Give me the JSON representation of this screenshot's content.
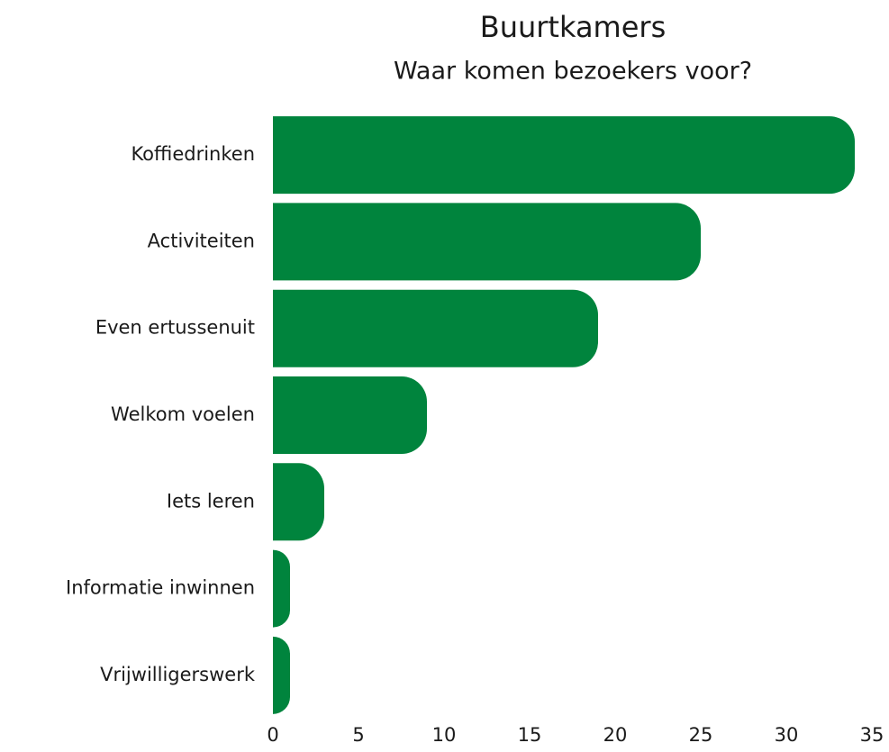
{
  "chart_data": {
    "type": "bar",
    "orientation": "horizontal",
    "title": "Buurtkamers",
    "subtitle": "Waar komen bezoekers voor?",
    "categories": [
      "Koffiedrinken",
      "Activiteiten",
      "Even ertussenuit",
      "Welkom voelen",
      "Iets leren",
      "Informatie inwinnen",
      "Vrijwilligerswerk"
    ],
    "values": [
      34,
      25,
      19,
      9,
      3,
      1,
      1
    ],
    "color": "#00843d",
    "xlim": [
      0,
      35
    ],
    "xticks": [
      0,
      5,
      10,
      15,
      20,
      25,
      30,
      35
    ],
    "grid": false
  }
}
